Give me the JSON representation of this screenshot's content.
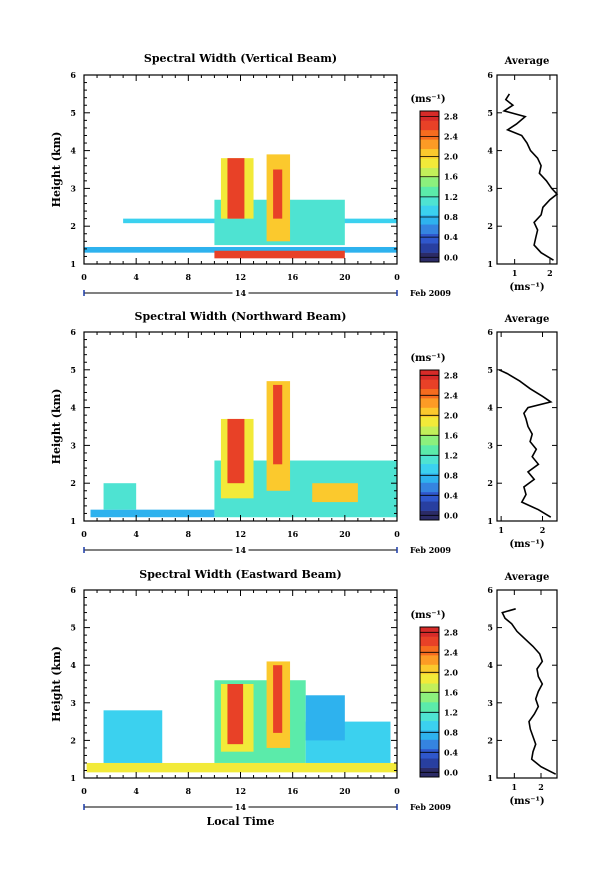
{
  "chart_data": [
    {
      "type": "heatmap",
      "title": "Spectral Width (Vertical Beam)",
      "ylabel": "Height (km)",
      "xlabel": "",
      "x_ticks": [
        "0",
        "4",
        "8",
        "12",
        "16",
        "20",
        "0"
      ],
      "y_ticks": [
        "1",
        "2",
        "3",
        "4",
        "5",
        "6"
      ],
      "xlim": [
        0,
        24
      ],
      "ylim": [
        1,
        6
      ],
      "day_label": "14",
      "date_label": "Feb 2009",
      "colorbar": {
        "unit": "(ms⁻¹)",
        "ticks": [
          "0.0",
          "0.4",
          "0.8",
          "1.2",
          "1.6",
          "2.0",
          "2.4",
          "2.8"
        ],
        "range": [
          0,
          3.0
        ]
      },
      "regions": [
        {
          "x": [
            0.0,
            24.0
          ],
          "y": [
            1.3,
            1.45
          ],
          "value": 0.75
        },
        {
          "x": [
            3.0,
            24.0
          ],
          "y": [
            2.08,
            2.2
          ],
          "value": 0.95
        },
        {
          "x": [
            10.0,
            20.0
          ],
          "y": [
            1.5,
            2.7
          ],
          "value": 1.25
        },
        {
          "x": [
            10.5,
            13.0
          ],
          "y": [
            2.2,
            3.8
          ],
          "value": 1.9
        },
        {
          "x": [
            11.0,
            12.3
          ],
          "y": [
            2.2,
            3.8
          ],
          "value": 2.8
        },
        {
          "x": [
            14.0,
            15.8
          ],
          "y": [
            1.6,
            3.9
          ],
          "value": 2.2
        },
        {
          "x": [
            14.5,
            15.2
          ],
          "y": [
            2.2,
            3.5
          ],
          "value": 2.8
        },
        {
          "x": [
            10.0,
            20.0
          ],
          "y": [
            1.15,
            1.35
          ],
          "value": 2.8
        }
      ],
      "average_profile": {
        "title": "Average",
        "xlabel": "(ms⁻¹)",
        "x_ticks": [
          "1",
          "2"
        ],
        "y_ticks": [
          "1",
          "2",
          "3",
          "4",
          "5",
          "6"
        ],
        "xlim": [
          0.5,
          2.2
        ],
        "ylim": [
          1,
          6
        ],
        "height": [
          1.1,
          1.3,
          1.5,
          1.7,
          1.9,
          2.1,
          2.3,
          2.5,
          2.7,
          2.85,
          3.0,
          3.2,
          3.4,
          3.6,
          3.8,
          4.0,
          4.2,
          4.4,
          4.55,
          4.7,
          4.9,
          5.05,
          5.2,
          5.35,
          5.5
        ],
        "width": [
          2.1,
          1.75,
          1.55,
          1.6,
          1.65,
          1.55,
          1.75,
          1.8,
          2.0,
          2.2,
          2.05,
          1.9,
          1.7,
          1.75,
          1.65,
          1.45,
          1.35,
          1.2,
          0.8,
          1.05,
          1.3,
          0.7,
          0.95,
          0.75,
          0.85
        ]
      }
    },
    {
      "type": "heatmap",
      "title": "Spectral Width (Northward Beam)",
      "ylabel": "Height (km)",
      "xlabel": "",
      "x_ticks": [
        "0",
        "4",
        "8",
        "12",
        "16",
        "20",
        "0"
      ],
      "y_ticks": [
        "1",
        "2",
        "3",
        "4",
        "5",
        "6"
      ],
      "xlim": [
        0,
        24
      ],
      "ylim": [
        1,
        6
      ],
      "day_label": "14",
      "date_label": "Feb 2009",
      "colorbar": {
        "unit": "(ms⁻¹)",
        "ticks": [
          "0.0",
          "0.4",
          "0.8",
          "1.2",
          "1.6",
          "2.0",
          "2.4",
          "2.8"
        ],
        "range": [
          0,
          3.0
        ]
      },
      "regions": [
        {
          "x": [
            0.5,
            10.0
          ],
          "y": [
            1.1,
            1.3
          ],
          "value": 0.8
        },
        {
          "x": [
            10.0,
            24.0
          ],
          "y": [
            1.1,
            2.6
          ],
          "value": 1.3
        },
        {
          "x": [
            1.5,
            4.0
          ],
          "y": [
            1.3,
            2.0
          ],
          "value": 1.2
        },
        {
          "x": [
            10.5,
            13.0
          ],
          "y": [
            1.6,
            3.7
          ],
          "value": 1.9
        },
        {
          "x": [
            11.0,
            12.3
          ],
          "y": [
            2.0,
            3.7
          ],
          "value": 2.8
        },
        {
          "x": [
            14.0,
            15.8
          ],
          "y": [
            1.8,
            4.7
          ],
          "value": 2.2
        },
        {
          "x": [
            14.5,
            15.2
          ],
          "y": [
            2.5,
            4.6
          ],
          "value": 2.8
        },
        {
          "x": [
            17.5,
            21.0
          ],
          "y": [
            1.5,
            2.0
          ],
          "value": 2.1
        }
      ],
      "average_profile": {
        "title": "Average",
        "xlabel": "(ms⁻¹)",
        "x_ticks": [
          "1",
          "2"
        ],
        "y_ticks": [
          "1",
          "2",
          "3",
          "4",
          "5",
          "6"
        ],
        "xlim": [
          0.9,
          2.35
        ],
        "ylim": [
          1,
          6
        ],
        "height": [
          1.1,
          1.3,
          1.5,
          1.7,
          1.9,
          2.1,
          2.3,
          2.5,
          2.7,
          2.9,
          3.1,
          3.3,
          3.5,
          3.7,
          3.85,
          4.0,
          4.15,
          4.3,
          4.5,
          4.7,
          4.9,
          5.0
        ],
        "width": [
          2.2,
          1.9,
          1.5,
          1.6,
          1.55,
          1.8,
          1.65,
          1.9,
          1.75,
          1.85,
          1.7,
          1.75,
          1.65,
          1.6,
          1.55,
          1.65,
          2.2,
          2.0,
          1.7,
          1.45,
          1.15,
          0.95
        ]
      }
    },
    {
      "type": "heatmap",
      "title": "Spectral Width (Eastward Beam)",
      "ylabel": "Height (km)",
      "xlabel": "Local Time",
      "x_ticks": [
        "0",
        "4",
        "8",
        "12",
        "16",
        "20",
        "0"
      ],
      "y_ticks": [
        "1",
        "2",
        "3",
        "4",
        "5",
        "6"
      ],
      "xlim": [
        0,
        24
      ],
      "ylim": [
        1,
        6
      ],
      "day_label": "14",
      "date_label": "Feb 2009",
      "colorbar": {
        "unit": "(ms⁻¹)",
        "ticks": [
          "0.0",
          "0.4",
          "0.8",
          "1.2",
          "1.6",
          "2.0",
          "2.4",
          "2.8"
        ],
        "range": [
          0,
          3.0
        ]
      },
      "regions": [
        {
          "x": [
            0.2,
            24.0
          ],
          "y": [
            1.15,
            1.4
          ],
          "value": 2.0
        },
        {
          "x": [
            1.5,
            6.0
          ],
          "y": [
            1.4,
            2.8
          ],
          "value": 0.95
        },
        {
          "x": [
            10.0,
            17.0
          ],
          "y": [
            1.4,
            3.6
          ],
          "value": 1.4
        },
        {
          "x": [
            17.0,
            23.5
          ],
          "y": [
            1.4,
            2.5
          ],
          "value": 1.0
        },
        {
          "x": [
            10.5,
            13.0
          ],
          "y": [
            1.7,
            3.5
          ],
          "value": 1.9
        },
        {
          "x": [
            11.0,
            12.2
          ],
          "y": [
            1.9,
            3.5
          ],
          "value": 2.8
        },
        {
          "x": [
            14.0,
            15.8
          ],
          "y": [
            1.8,
            4.1
          ],
          "value": 2.2
        },
        {
          "x": [
            14.5,
            15.2
          ],
          "y": [
            2.2,
            4.0
          ],
          "value": 2.8
        },
        {
          "x": [
            17.0,
            20.0
          ],
          "y": [
            2.0,
            3.2
          ],
          "value": 0.8
        }
      ],
      "average_profile": {
        "title": "Average",
        "xlabel": "(ms⁻¹)",
        "x_ticks": [
          "1",
          "2"
        ],
        "y_ticks": [
          "1",
          "2",
          "3",
          "4",
          "5",
          "6"
        ],
        "xlim": [
          0.35,
          2.6
        ],
        "ylim": [
          1,
          6
        ],
        "height": [
          1.1,
          1.3,
          1.5,
          1.7,
          1.9,
          2.1,
          2.3,
          2.5,
          2.7,
          2.9,
          3.1,
          3.3,
          3.5,
          3.7,
          3.9,
          4.1,
          4.3,
          4.5,
          4.7,
          4.9,
          5.1,
          5.25,
          5.4,
          5.5
        ],
        "width": [
          2.55,
          2.0,
          1.65,
          1.7,
          1.8,
          1.7,
          1.6,
          1.55,
          1.75,
          1.9,
          1.8,
          1.9,
          2.05,
          1.9,
          1.85,
          2.05,
          1.95,
          1.7,
          1.4,
          1.1,
          0.9,
          0.65,
          0.55,
          1.05
        ]
      }
    }
  ],
  "colors": {
    "scale": [
      "#2b2b67",
      "#283fa0",
      "#2f57cc",
      "#3584e0",
      "#2eb2ee",
      "#3bd1ef",
      "#4ee3d2",
      "#5bebaa",
      "#8cf07d",
      "#c2ef5a",
      "#f2ea39",
      "#fbc92d",
      "#fc9b25",
      "#f66c1f",
      "#e84127",
      "#d72b29"
    ]
  }
}
